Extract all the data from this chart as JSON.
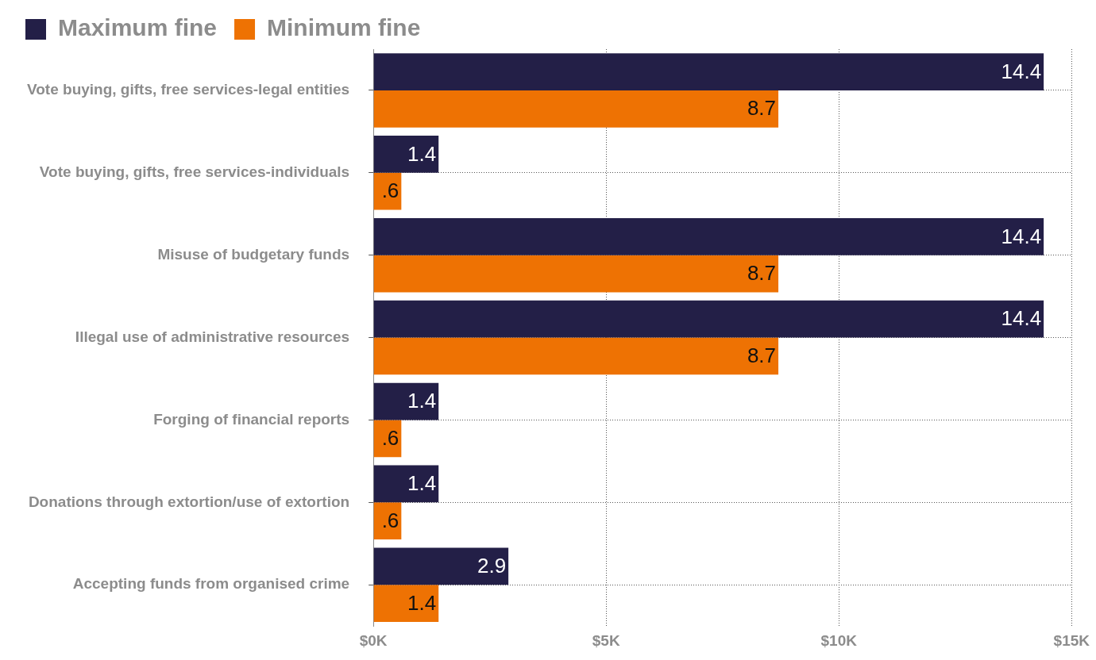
{
  "chart_data": {
    "type": "bar",
    "orientation": "horizontal",
    "categories": [
      "Vote buying, gifts, free services-legal entities",
      "Vote buying, gifts, free services-individuals",
      "Misuse of budgetary funds",
      "Illegal use of administrative resources",
      "Forging of financial reports",
      "Donations through extortion/use of extortion",
      "Accepting funds from organised crime"
    ],
    "series": [
      {
        "name": "Maximum fine",
        "color": "#231f47",
        "values": [
          14.4,
          1.4,
          14.4,
          14.4,
          1.4,
          1.4,
          2.9
        ],
        "value_labels": [
          "14.4",
          "1.4",
          "14.4",
          "14.4",
          "1.4",
          "1.4",
          "2.9"
        ]
      },
      {
        "name": "Minimum fine",
        "color": "#ee7203",
        "values": [
          8.7,
          0.6,
          8.7,
          8.7,
          0.6,
          0.6,
          1.4
        ],
        "value_labels": [
          "8.7",
          ".6",
          "8.7",
          "8.7",
          ".6",
          ".6",
          "1.4"
        ]
      }
    ],
    "xlim": [
      0,
      15
    ],
    "xticks": [
      {
        "value": 0,
        "label": "$0K"
      },
      {
        "value": 5,
        "label": "$5K"
      },
      {
        "value": 10,
        "label": "$10K"
      },
      {
        "value": 15,
        "label": "$15K"
      }
    ],
    "grid": true,
    "legend": "top left"
  }
}
